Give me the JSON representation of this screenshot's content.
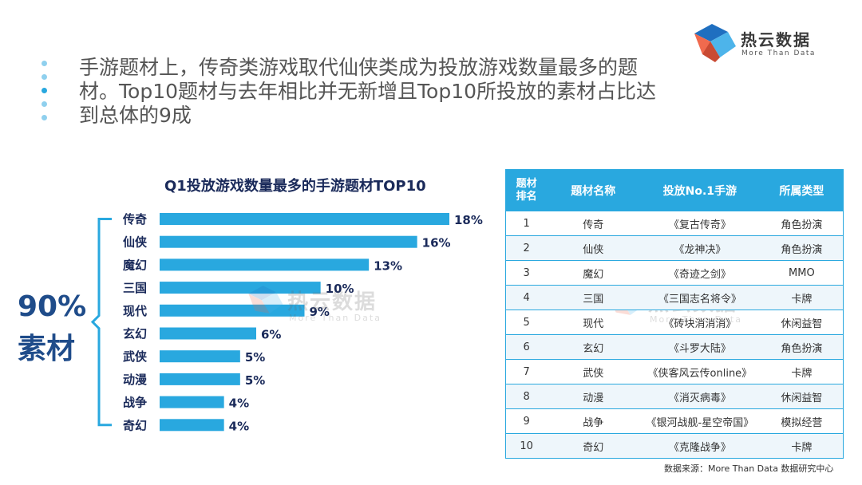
{
  "logo": {
    "name_cn": "热云数据",
    "name_en": "More Than Data"
  },
  "headline": "手游题材上，传奇类游戏取代仙侠类成为投放游戏数量最多的题材。Top10题材与去年相比并无新增且Top10所投放的素材占比达到总体的9成",
  "summary": {
    "percent": "90%",
    "label": "素材"
  },
  "colors": {
    "bar": "#29a8df",
    "table_header": "#29a8df",
    "summary": "#1f4c8a",
    "title": "#1a2a5a"
  },
  "chart_data": {
    "type": "bar",
    "orientation": "horizontal",
    "title": "Q1投放游戏数量最多的手游题材TOP10",
    "categories": [
      "传奇",
      "仙侠",
      "魔幻",
      "三国",
      "现代",
      "玄幻",
      "武侠",
      "动漫",
      "战争",
      "奇幻"
    ],
    "values": [
      18,
      16,
      13,
      10,
      9,
      6,
      5,
      5,
      4,
      4
    ],
    "value_labels": [
      "18%",
      "16%",
      "13%",
      "10%",
      "9%",
      "6%",
      "5%",
      "5%",
      "4%",
      "4%"
    ],
    "unit": "%",
    "xlim": [
      0,
      18
    ],
    "grid": false,
    "legend": "none"
  },
  "table": {
    "headers": {
      "rank_line1": "题材",
      "rank_line2": "排名",
      "name": "题材名称",
      "game": "投放No.1手游",
      "type": "所属类型"
    },
    "rows": [
      {
        "rank": "1",
        "name": "传奇",
        "game": "《复古传奇》",
        "type": "角色扮演"
      },
      {
        "rank": "2",
        "name": "仙侠",
        "game": "《龙神决》",
        "type": "角色扮演"
      },
      {
        "rank": "3",
        "name": "魔幻",
        "game": "《奇迹之剑》",
        "type": "MMO"
      },
      {
        "rank": "4",
        "name": "三国",
        "game": "《三国志名将令》",
        "type": "卡牌"
      },
      {
        "rank": "5",
        "name": "现代",
        "game": "《砖块消消消》",
        "type": "休闲益智"
      },
      {
        "rank": "6",
        "name": "玄幻",
        "game": "《斗罗大陆》",
        "type": "角色扮演"
      },
      {
        "rank": "7",
        "name": "武侠",
        "game": "《侠客风云传online》",
        "type": "卡牌"
      },
      {
        "rank": "8",
        "name": "动漫",
        "game": "《消灭病毒》",
        "type": "休闲益智"
      },
      {
        "rank": "9",
        "name": "战争",
        "game": "《银河战舰-星空帝国》",
        "type": "模拟经营"
      },
      {
        "rank": "10",
        "name": "奇幻",
        "game": "《克隆战争》",
        "type": "卡牌"
      }
    ]
  },
  "source": "数据来源：More Than Data 数据研究中心"
}
